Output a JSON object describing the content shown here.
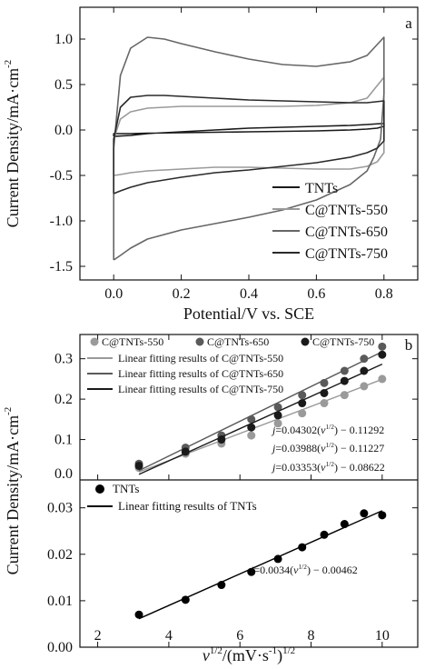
{
  "chart_data": [
    {
      "panel_label": "a",
      "type": "line",
      "xlabel": "Potential/V vs. SCE",
      "ylabel": "Current Density/mA·cm",
      "ylabel_sup": "-2",
      "xlim": [
        -0.1,
        0.9
      ],
      "ylim": [
        -1.65,
        1.35
      ],
      "xticks": [
        0.0,
        0.2,
        0.4,
        0.6,
        0.8
      ],
      "xtick_labels": [
        "0.0",
        "0.2",
        "0.4",
        "0.6",
        "0.8"
      ],
      "yticks": [
        -1.5,
        -1.0,
        -0.5,
        0.0,
        0.5,
        1.0
      ],
      "ytick_labels": [
        "-1.5",
        "-1.0",
        "-0.5",
        "0.0",
        "0.5",
        "1.0"
      ],
      "legend_position": "bottom-right",
      "series": [
        {
          "name": "TNTs",
          "color": "#1a1a1a",
          "x": [
            0.0,
            0.0,
            0.05,
            0.1,
            0.2,
            0.3,
            0.4,
            0.5,
            0.6,
            0.7,
            0.75,
            0.78,
            0.8,
            0.8,
            0.79,
            0.75,
            0.7,
            0.6,
            0.5,
            0.4,
            0.3,
            0.2,
            0.1,
            0.05,
            0.0
          ],
          "y": [
            -0.07,
            -0.04,
            -0.04,
            -0.035,
            -0.03,
            -0.025,
            -0.02,
            -0.015,
            -0.01,
            0.0,
            0.01,
            0.02,
            0.04,
            0.07,
            0.07,
            0.06,
            0.05,
            0.04,
            0.03,
            0.02,
            0.0,
            -0.02,
            -0.04,
            -0.06,
            -0.07
          ]
        },
        {
          "name": "C@TNTs-550",
          "color": "#9a9a9a",
          "x": [
            0.0,
            0.0,
            0.02,
            0.05,
            0.1,
            0.2,
            0.3,
            0.4,
            0.5,
            0.6,
            0.7,
            0.75,
            0.8,
            0.8,
            0.78,
            0.75,
            0.7,
            0.6,
            0.5,
            0.4,
            0.3,
            0.2,
            0.1,
            0.05,
            0.02,
            0.0
          ],
          "y": [
            -0.5,
            -0.1,
            0.12,
            0.2,
            0.24,
            0.26,
            0.26,
            0.26,
            0.26,
            0.27,
            0.3,
            0.35,
            0.58,
            -0.25,
            -0.35,
            -0.4,
            -0.43,
            -0.43,
            -0.42,
            -0.41,
            -0.41,
            -0.43,
            -0.45,
            -0.47,
            -0.49,
            -0.5
          ]
        },
        {
          "name": "C@TNTs-650",
          "color": "#666666",
          "x": [
            0.0,
            0.0,
            0.02,
            0.05,
            0.1,
            0.15,
            0.2,
            0.3,
            0.4,
            0.5,
            0.6,
            0.7,
            0.75,
            0.8,
            0.8,
            0.79,
            0.77,
            0.75,
            0.7,
            0.6,
            0.5,
            0.4,
            0.3,
            0.2,
            0.1,
            0.05,
            0.02,
            0.0
          ],
          "y": [
            -1.43,
            -0.2,
            0.6,
            0.9,
            1.02,
            1.0,
            0.95,
            0.86,
            0.78,
            0.72,
            0.7,
            0.75,
            0.82,
            1.02,
            0.4,
            -0.1,
            -0.3,
            -0.45,
            -0.6,
            -0.77,
            -0.88,
            -0.96,
            -1.03,
            -1.1,
            -1.2,
            -1.3,
            -1.38,
            -1.43
          ]
        },
        {
          "name": "C@TNTs-750",
          "color": "#2a2a2a",
          "x": [
            0.0,
            0.0,
            0.02,
            0.05,
            0.1,
            0.15,
            0.2,
            0.3,
            0.4,
            0.5,
            0.6,
            0.7,
            0.75,
            0.8,
            0.8,
            0.78,
            0.75,
            0.7,
            0.6,
            0.5,
            0.4,
            0.3,
            0.2,
            0.1,
            0.05,
            0.02,
            0.0
          ],
          "y": [
            -0.7,
            -0.1,
            0.25,
            0.36,
            0.38,
            0.38,
            0.37,
            0.35,
            0.33,
            0.32,
            0.31,
            0.3,
            0.3,
            0.32,
            -0.12,
            -0.2,
            -0.25,
            -0.3,
            -0.36,
            -0.4,
            -0.44,
            -0.47,
            -0.52,
            -0.58,
            -0.63,
            -0.67,
            -0.7
          ]
        }
      ]
    },
    {
      "panel_label": "b",
      "type": "scatter",
      "xlabel": "v",
      "xlabel_sup1": "1/2",
      "xlabel_mid": "/(mV·s",
      "xlabel_sup2": "-1",
      "xlabel_end": ")",
      "xlabel_sup3": "1/2",
      "ylabel": "Current Density/mA·cm",
      "ylabel_sup": "-2",
      "xlim": [
        1.5,
        11
      ],
      "xticks": [
        2,
        4,
        6,
        8,
        10
      ],
      "xtick_labels": [
        "2",
        "4",
        "6",
        "8",
        "10"
      ],
      "x": [
        3.16,
        4.47,
        5.48,
        6.32,
        7.07,
        7.75,
        8.37,
        8.94,
        9.49,
        10.0
      ],
      "upper": {
        "ylim": [
          0.0,
          0.36
        ],
        "yticks": [
          0.0,
          0.1,
          0.2,
          0.3
        ],
        "ytick_labels": [
          "0.0",
          "0.1",
          "0.2",
          "0.3"
        ],
        "series": [
          {
            "name": "C@TNTs-550",
            "color": "#9a9a9a",
            "values": [
              0.03,
              0.065,
              0.09,
              0.11,
              0.14,
              0.165,
              0.19,
              0.21,
              0.232,
              0.25
            ],
            "fit_name": "Linear fitting results of C@TNTs-550",
            "fit_slope": 0.03353,
            "fit_intercept": -0.08622,
            "eq_prefix": "j",
            "eq_coef": "=0.03353(",
            "eq_v": "v",
            "eq_sup": "1/2",
            "eq_tail": ") − 0.08622"
          },
          {
            "name": "C@TNTs-650",
            "color": "#5a5a5a",
            "values": [
              0.04,
              0.08,
              0.11,
              0.15,
              0.18,
              0.21,
              0.24,
              0.27,
              0.3,
              0.33
            ],
            "fit_name": "Linear fitting results of C@TNTs-650",
            "fit_slope": 0.04302,
            "fit_intercept": -0.11292,
            "eq_prefix": "j",
            "eq_coef": "=0.04302(",
            "eq_v": "v",
            "eq_sup": "1/2",
            "eq_tail": ") − 0.11292"
          },
          {
            "name": "C@TNTs-750",
            "color": "#1a1a1a",
            "values": [
              0.035,
              0.07,
              0.1,
              0.13,
              0.16,
              0.19,
              0.215,
              0.245,
              0.27,
              0.31
            ],
            "fit_name": "Linear fitting results of C@TNTs-750",
            "fit_slope": 0.03988,
            "fit_intercept": -0.11227,
            "eq_prefix": "j",
            "eq_coef": "=0.03988(",
            "eq_v": "v",
            "eq_sup": "1/2",
            "eq_tail": ") − 0.11227"
          }
        ]
      },
      "lower": {
        "ylim": [
          0.0,
          0.036
        ],
        "yticks": [
          0.0,
          0.01,
          0.02,
          0.03
        ],
        "ytick_labels": [
          "0.00",
          "0.01",
          "0.02",
          "0.03"
        ],
        "series": [
          {
            "name": "TNTs",
            "color": "#000000",
            "values": [
              0.007,
              0.0102,
              0.0134,
              0.0162,
              0.019,
              0.0215,
              0.0242,
              0.0265,
              0.0288,
              0.0284
            ],
            "fit_name": "Linear fitting results of TNTs",
            "fit_slope": 0.0034,
            "fit_intercept": -0.00462,
            "eq_prefix": "j",
            "eq_coef": "=0.0034(",
            "eq_v": "v",
            "eq_sup": "1/2",
            "eq_tail": ") − 0.00462"
          }
        ]
      }
    }
  ]
}
